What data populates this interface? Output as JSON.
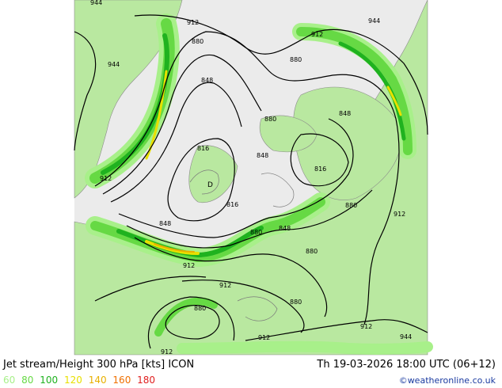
{
  "title": "Jet stream/Height 300 hPa [kts] ICON",
  "datetime": "Th 19-03-2026 18:00 UTC (06+12)",
  "credit": "©weatheronline.co.uk",
  "legend": [
    {
      "label": "60",
      "color": "#a8f08a"
    },
    {
      "label": "80",
      "color": "#66d944"
    },
    {
      "label": "100",
      "color": "#1fb21f"
    },
    {
      "label": "120",
      "color": "#e8e000"
    },
    {
      "label": "140",
      "color": "#e8b000"
    },
    {
      "label": "160",
      "color": "#f07000"
    },
    {
      "label": "180",
      "color": "#e02020"
    }
  ],
  "contour_labels": [
    "944",
    "912",
    "880",
    "848",
    "816",
    "944",
    "912",
    "880",
    "848",
    "816",
    "880",
    "848",
    "880",
    "912",
    "944",
    "880",
    "848",
    "816",
    "880",
    "912",
    "848",
    "880",
    "912",
    "944",
    "880",
    "912",
    "912",
    "848",
    "880",
    "912",
    "816",
    "912",
    "912"
  ],
  "low_marker": "D"
}
